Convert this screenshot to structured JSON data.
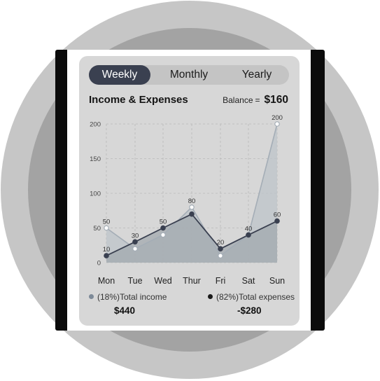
{
  "tabs": [
    {
      "label": "Weekly",
      "active": true
    },
    {
      "label": "Monthly",
      "active": false
    },
    {
      "label": "Yearly",
      "active": false
    }
  ],
  "header": {
    "title": "Income & Expenses",
    "balance_label": "Balance",
    "balance_eq": "=",
    "balance_value": "$160"
  },
  "legend": {
    "income": {
      "label": "(18%)Total income",
      "total": "$440",
      "color": "#7d8a98"
    },
    "expenses": {
      "label": "(82%)Total expenses",
      "total": "-$280",
      "color": "#1a1a1a"
    }
  },
  "chart_data": {
    "type": "area",
    "categories": [
      "Mon",
      "Tue",
      "Wed",
      "Thur",
      "Fri",
      "Sat",
      "Sun"
    ],
    "ylim": [
      0,
      200
    ],
    "yticks": [
      0,
      50,
      100,
      150,
      200
    ],
    "grid": true,
    "series": [
      {
        "values": [
          50,
          20,
          40,
          80,
          10,
          40,
          200
        ],
        "color": "#a8b0b8"
      },
      {
        "values": [
          10,
          30,
          50,
          70,
          20,
          40,
          60
        ],
        "color": "#3a4050"
      }
    ],
    "data_labels": [
      "50",
      "10",
      "30",
      "50",
      "80",
      "20",
      "40",
      "200",
      "60"
    ]
  }
}
